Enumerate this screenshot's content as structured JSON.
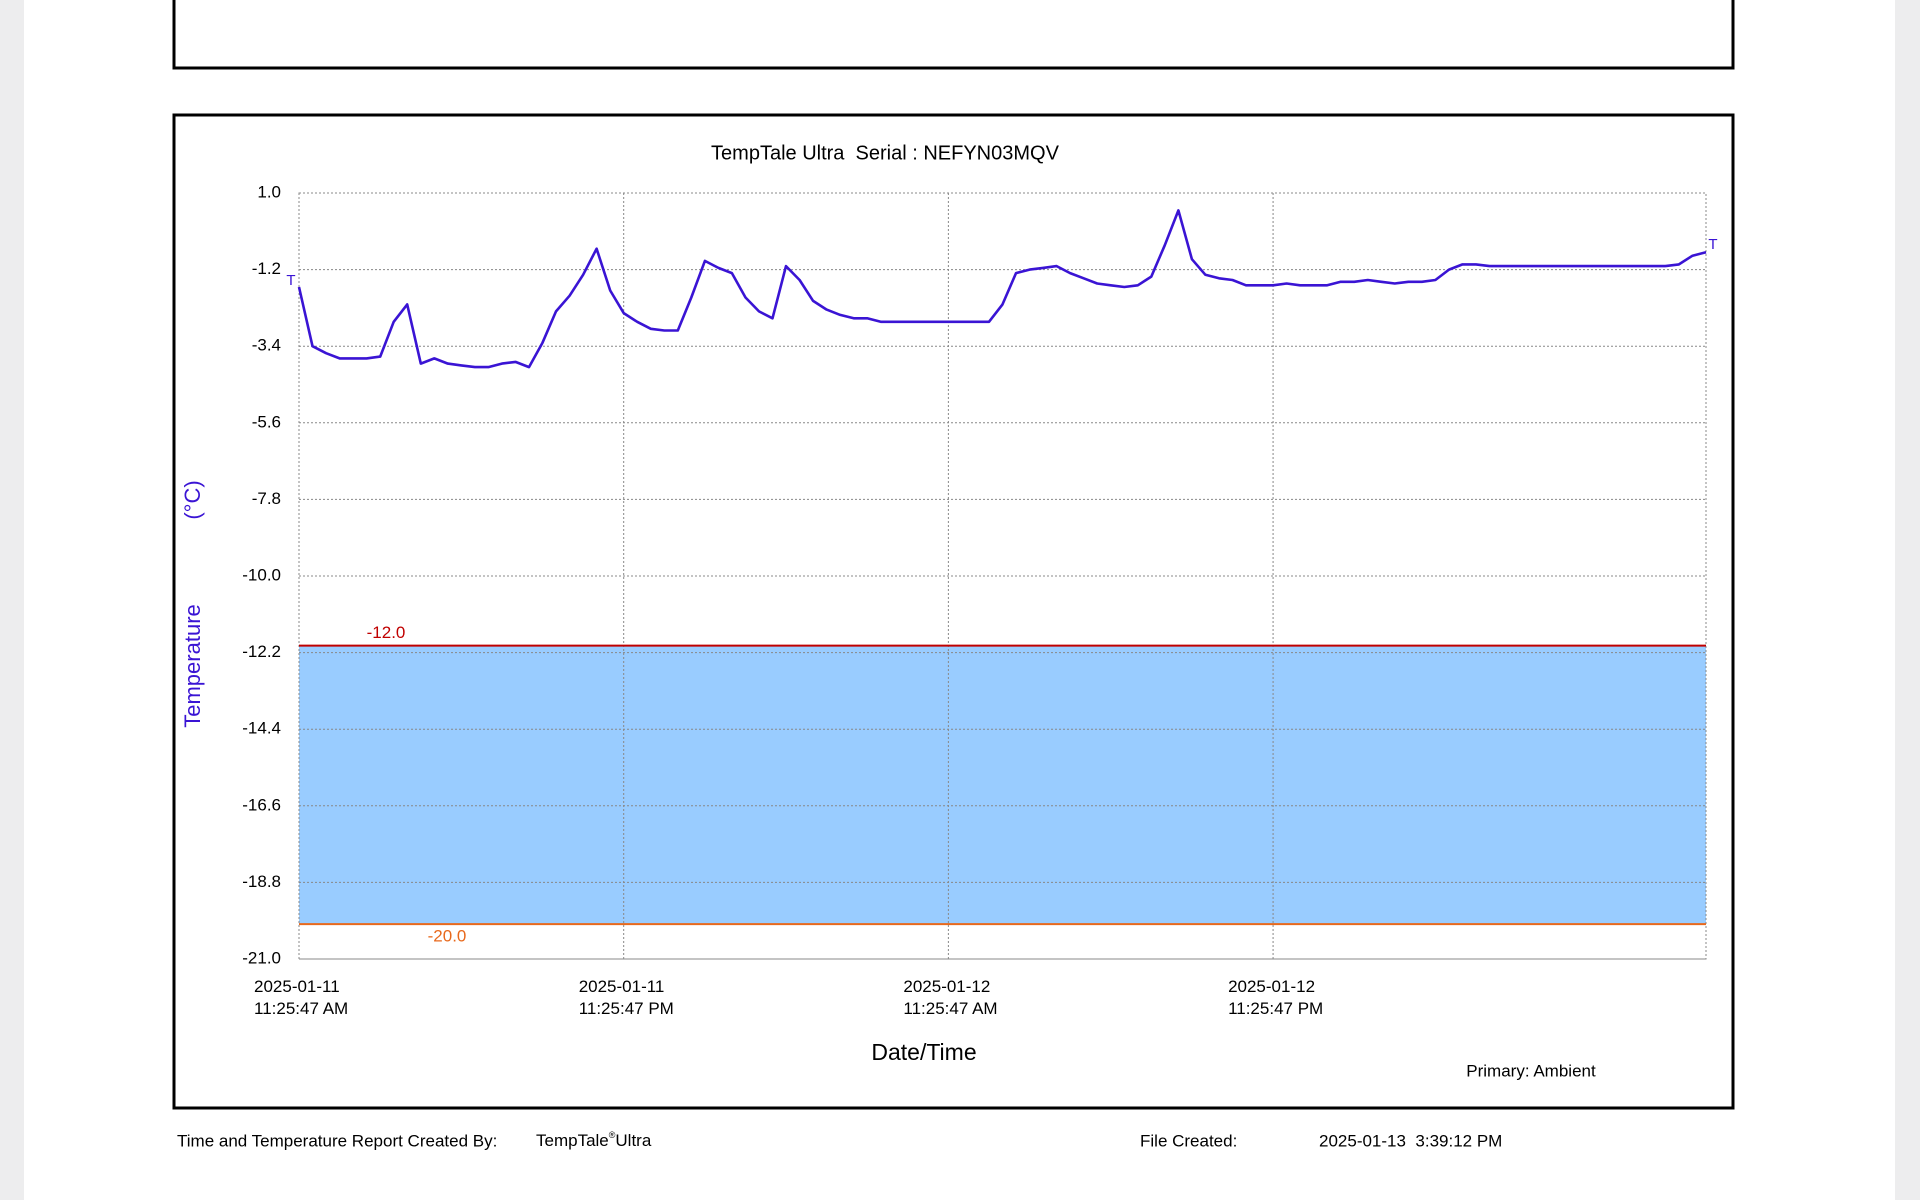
{
  "chart_data": {
    "type": "line",
    "title": "TempTale Ultra  Serial : NEFYN03MQV",
    "y_label": "Temperature",
    "y_unit": "(°C)",
    "x_label": "Date/Time",
    "legend_text": "Primary: Ambient",
    "point_markers": [
      "T",
      "T"
    ],
    "x": [
      "2025-01-11 11:25:47",
      "2025-01-11 11:55:47",
      "2025-01-11 12:25:47",
      "2025-01-11 12:55:47",
      "2025-01-11 13:25:47",
      "2025-01-11 13:55:47",
      "2025-01-11 14:25:47",
      "2025-01-11 14:55:47",
      "2025-01-11 15:25:47",
      "2025-01-11 15:55:47",
      "2025-01-11 16:25:47",
      "2025-01-11 16:55:47",
      "2025-01-11 17:25:47",
      "2025-01-11 17:55:47",
      "2025-01-11 18:25:47",
      "2025-01-11 18:55:47",
      "2025-01-11 19:25:47",
      "2025-01-11 19:55:47",
      "2025-01-11 20:25:47",
      "2025-01-11 20:55:47",
      "2025-01-11 21:25:47",
      "2025-01-11 21:55:47",
      "2025-01-11 22:25:47",
      "2025-01-11 22:55:47",
      "2025-01-11 23:25:47",
      "2025-01-11 23:55:47",
      "2025-01-12 00:25:47",
      "2025-01-12 00:55:47",
      "2025-01-12 01:25:47",
      "2025-01-12 01:55:47",
      "2025-01-12 02:25:47",
      "2025-01-12 02:55:47",
      "2025-01-12 03:25:47",
      "2025-01-12 03:55:47",
      "2025-01-12 04:25:47",
      "2025-01-12 04:55:47",
      "2025-01-12 05:25:47",
      "2025-01-12 05:55:47",
      "2025-01-12 06:25:47",
      "2025-01-12 06:55:47",
      "2025-01-12 07:25:47",
      "2025-01-12 07:55:47",
      "2025-01-12 08:25:47",
      "2025-01-12 08:55:47",
      "2025-01-12 09:25:47",
      "2025-01-12 09:55:47",
      "2025-01-12 10:25:47",
      "2025-01-12 10:55:47",
      "2025-01-12 11:25:47",
      "2025-01-12 11:55:47",
      "2025-01-12 12:25:47",
      "2025-01-12 12:55:47",
      "2025-01-12 13:25:47",
      "2025-01-12 13:55:47",
      "2025-01-12 14:25:47",
      "2025-01-12 14:55:47",
      "2025-01-12 15:25:47",
      "2025-01-12 15:55:47",
      "2025-01-12 16:25:47",
      "2025-01-12 16:55:47",
      "2025-01-12 17:25:47",
      "2025-01-12 17:55:47",
      "2025-01-12 18:25:47",
      "2025-01-12 18:55:47",
      "2025-01-12 19:25:47",
      "2025-01-12 19:55:47",
      "2025-01-12 20:25:47",
      "2025-01-12 20:55:47",
      "2025-01-12 21:25:47",
      "2025-01-12 21:55:47",
      "2025-01-12 22:25:47",
      "2025-01-12 22:55:47",
      "2025-01-12 23:25:47",
      "2025-01-12 23:55:47",
      "2025-01-13 00:25:47",
      "2025-01-13 00:55:47",
      "2025-01-13 01:25:47",
      "2025-01-13 01:55:47",
      "2025-01-13 02:25:47",
      "2025-01-13 02:55:47",
      "2025-01-13 03:25:47",
      "2025-01-13 03:55:47",
      "2025-01-13 04:25:47",
      "2025-01-13 04:55:47",
      "2025-01-13 05:25:47",
      "2025-01-13 05:55:47",
      "2025-01-13 06:25:47",
      "2025-01-13 06:55:47",
      "2025-01-13 07:25:47",
      "2025-01-13 07:55:47",
      "2025-01-13 08:25:47",
      "2025-01-13 08:55:47",
      "2025-01-13 09:25:47",
      "2025-01-13 09:55:47",
      "2025-01-13 10:25:47",
      "2025-01-13 10:55:47",
      "2025-01-13 11:25:47",
      "2025-01-13 11:55:47",
      "2025-01-13 12:25:47",
      "2025-01-13 12:55:47",
      "2025-01-13 13:25:47",
      "2025-01-13 13:55:47",
      "2025-01-13 14:25:47",
      "2025-01-13 14:55:47",
      "2025-01-13 15:25:47"
    ],
    "series": [
      {
        "name": "Ambient",
        "color": "#3a14d4",
        "values": [
          -1.7,
          -3.4,
          -3.6,
          -3.75,
          -3.75,
          -3.75,
          -3.7,
          -2.7,
          -2.2,
          -3.9,
          -3.75,
          -3.9,
          -3.95,
          -4.0,
          -4.0,
          -3.9,
          -3.85,
          -4.0,
          -3.3,
          -2.4,
          -1.95,
          -1.35,
          -0.6,
          -1.8,
          -2.45,
          -2.7,
          -2.9,
          -2.95,
          -2.95,
          -2.0,
          -0.95,
          -1.15,
          -1.3,
          -2.0,
          -2.4,
          -2.6,
          -1.1,
          -1.5,
          -2.1,
          -2.35,
          -2.5,
          -2.6,
          -2.6,
          -2.7,
          -2.7,
          -2.7,
          -2.7,
          -2.7,
          -2.7,
          -2.7,
          -2.7,
          -2.7,
          -2.2,
          -1.3,
          -1.2,
          -1.15,
          -1.1,
          -1.3,
          -1.45,
          -1.6,
          -1.65,
          -1.7,
          -1.65,
          -1.4,
          -0.5,
          0.5,
          -0.9,
          -1.35,
          -1.45,
          -1.5,
          -1.65,
          -1.65,
          -1.65,
          -1.6,
          -1.65,
          -1.65,
          -1.65,
          -1.55,
          -1.55,
          -1.5,
          -1.55,
          -1.6,
          -1.55,
          -1.55,
          -1.5,
          -1.2,
          -1.05,
          -1.05,
          -1.1,
          -1.1,
          -1.1,
          -1.1,
          -1.1,
          -1.1,
          -1.1,
          -1.1,
          -1.1,
          -1.1,
          -1.1,
          -1.1,
          -1.1,
          -1.1,
          -1.05,
          -0.8,
          -0.7
        ]
      }
    ],
    "thresholds": [
      {
        "value": -12,
        "label": "-12.0",
        "color": "#c00000"
      },
      {
        "value": -20,
        "label": "-20.0",
        "color": "#e8691c"
      }
    ],
    "band_color": "#99ccff",
    "xlim": [
      "2025-01-11 11:25:47",
      "2025-01-13 15:25:47"
    ],
    "xticks": [
      {
        "value": "2025-01-11 11:25:47",
        "label": "2025-01-11 11:25:47 AM"
      },
      {
        "value": "2025-01-11 23:25:47",
        "label": "2025-01-11 11:25:47 PM"
      },
      {
        "value": "2025-01-12 11:25:47",
        "label": "2025-01-12 11:25:47 AM"
      },
      {
        "value": "2025-01-12 23:25:47",
        "label": "2025-01-12 11:25:47 PM"
      }
    ],
    "ylim": [
      -21,
      1
    ],
    "yticks": [
      {
        "value": 1,
        "label": "1.0"
      },
      -1.2,
      -3.4,
      -5.6,
      -7.8,
      {
        "value": -10,
        "label": "-10.0"
      },
      -12.2,
      -14.4,
      -16.6,
      -18.8,
      {
        "value": -21,
        "label": "-21.0"
      }
    ],
    "grid": true
  },
  "footer": {
    "created_by_label": "Time and Temperature Report Created By:",
    "product": "TempTale",
    "product_mark": "®",
    "product_suffix": "Ultra",
    "file_created_label": "File Created:",
    "file_created": "2025-01-13  3:39:12 PM"
  }
}
